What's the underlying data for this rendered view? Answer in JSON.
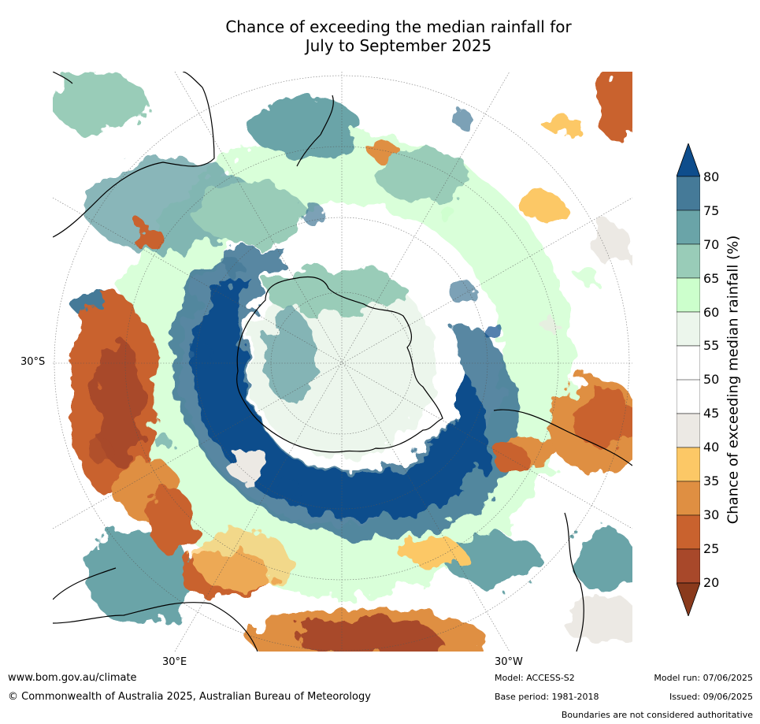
{
  "title_line1": "Chance of exceeding the median rainfall for",
  "title_line2": "July to September 2025",
  "map": {
    "lat_label": "30°S",
    "lon_label_east": "30°E",
    "lon_label_west": "30°W",
    "projection": "south polar stereographic"
  },
  "colorbar": {
    "title": "Chance of exceeding median rainfall (%)",
    "ticks": [
      "20",
      "25",
      "30",
      "35",
      "40",
      "45",
      "50",
      "55",
      "60",
      "65",
      "70",
      "75",
      "80"
    ],
    "colors": {
      "below20": "#8a3a1c",
      "20_25": "#a8482a",
      "25_30": "#c9622e",
      "30_35": "#df8f42",
      "35_40": "#fcc866",
      "40_45": "#ece9e4",
      "45_55": "#ffffff",
      "55_60": "#ecf6ec",
      "60_65": "#ccffcc",
      "65_70": "#99ccb8",
      "70_75": "#6aa4a8",
      "75_80": "#457a98",
      "above80": "#0e4d8c"
    }
  },
  "footer": {
    "website": "www.bom.gov.au/climate",
    "copyright": "© Commonwealth of Australia 2025, Australian Bureau of Meteorology",
    "model": "Model: ACCESS-S2",
    "base_period": "Base period: 1981-2018",
    "model_run": "Model run: 07/06/2025",
    "issued": "Issued: 09/06/2025",
    "disclaimer": "Boundaries are not considered authoritative"
  }
}
